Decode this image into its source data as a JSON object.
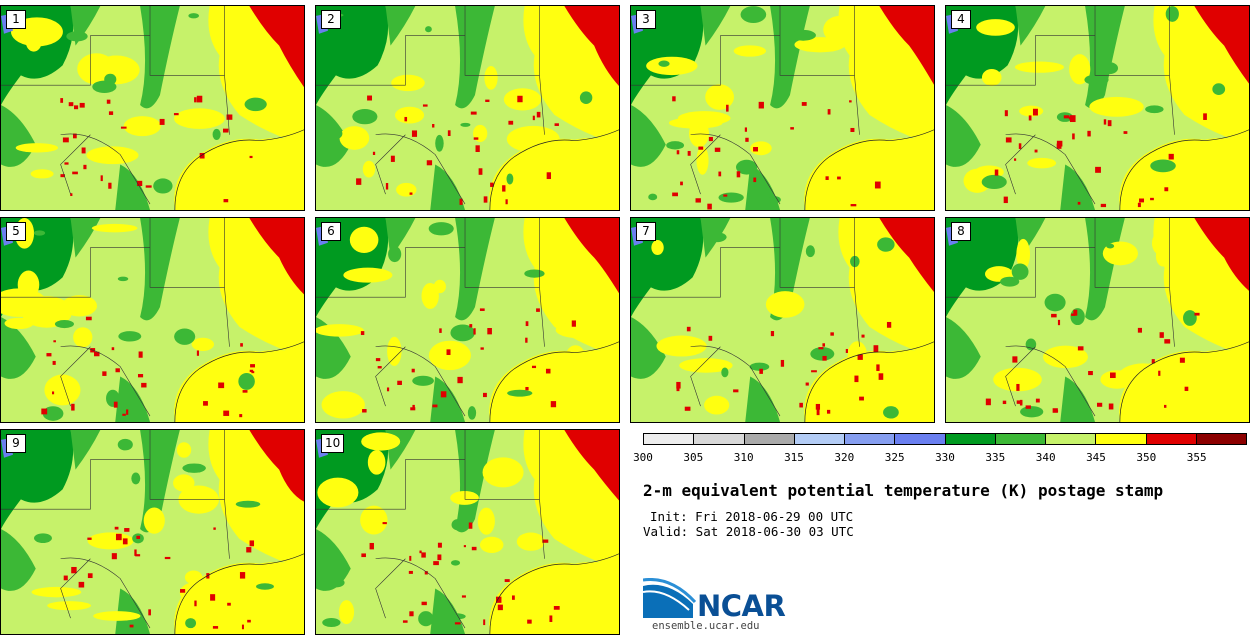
{
  "panels": [
    "1",
    "2",
    "3",
    "4",
    "5",
    "6",
    "7",
    "8",
    "9",
    "10"
  ],
  "colors": {
    "background_field": "#c6f26a",
    "bins": [
      "#ededed",
      "#d8d8d8",
      "#aaaaaa",
      "#b3ccf5",
      "#869ef0",
      "#6a7ff0",
      "#009a20",
      "#3cb836",
      "#c6f26a",
      "#ffff10",
      "#e00000",
      "#8c0000"
    ]
  },
  "colorbar": {
    "ticks": [
      "300",
      "305",
      "310",
      "315",
      "320",
      "325",
      "330",
      "335",
      "340",
      "345",
      "350",
      "355"
    ]
  },
  "title": "2-m equivalent potential temperature (K) postage stamp",
  "init": "Init: Fri 2018-06-29 00 UTC",
  "valid": "Valid: Sat 2018-06-30 03 UTC",
  "logo": {
    "text": "NCAR",
    "url": "ensemble.ucar.edu"
  }
}
